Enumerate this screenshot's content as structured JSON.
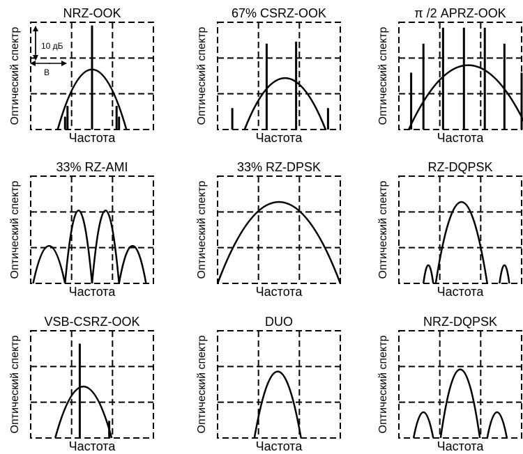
{
  "axis_labels": {
    "x": "Частота",
    "y": "Оптический спектр"
  },
  "annotations": {
    "power_scale": "10 дБ",
    "bandwidth": "B"
  },
  "panels": [
    {
      "title": "NRZ-OOK"
    },
    {
      "title": "67% CSRZ-OOK"
    },
    {
      "title": "π /2 APRZ-OOK"
    },
    {
      "title": "33% RZ-AMI"
    },
    {
      "title": "33% RZ-DPSK"
    },
    {
      "title": "RZ-DQPSK"
    },
    {
      "title": "VSB-CSRZ-OOK"
    },
    {
      "title": "DUO"
    },
    {
      "title": "NRZ-DQPSK"
    }
  ]
}
